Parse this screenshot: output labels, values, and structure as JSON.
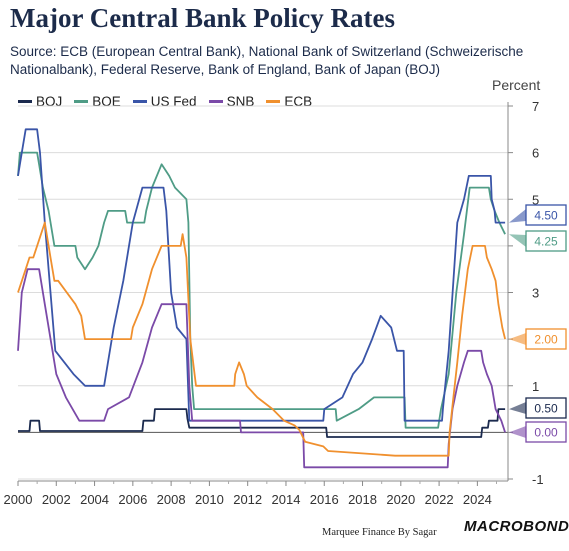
{
  "title": "Major Central Bank Policy Rates",
  "subtitle": "Source: ECB (European Central Bank), National Bank of Switzerland (Schweizerische Nationalbank), Federal Reserve, Bank of England, Bank of Japan (BOJ)",
  "credit": "Marquee Finance By Sagar",
  "brand": "MACROBOND",
  "chart_data": {
    "type": "line",
    "title": "Major Central Bank Policy Rates",
    "ylabel": "Percent",
    "xlabel": "",
    "xlim": [
      2000,
      2025.6
    ],
    "ylim": [
      -1,
      7
    ],
    "x_ticks": [
      2000,
      2002,
      2004,
      2006,
      2008,
      2010,
      2012,
      2014,
      2016,
      2018,
      2020,
      2022,
      2024
    ],
    "y_ticks": [
      -1,
      0,
      1,
      2,
      3,
      4,
      5,
      6,
      7
    ],
    "grid": "horizontal",
    "legend_position": "top-left",
    "series": [
      {
        "name": "BOJ",
        "color": "#1b2a4e",
        "end_label": "0.50",
        "points": [
          [
            2000,
            0.03
          ],
          [
            2000.6,
            0.03
          ],
          [
            2000.65,
            0.25
          ],
          [
            2001.1,
            0.25
          ],
          [
            2001.15,
            0.03
          ],
          [
            2006.5,
            0.03
          ],
          [
            2006.55,
            0.25
          ],
          [
            2007.1,
            0.25
          ],
          [
            2007.15,
            0.5
          ],
          [
            2008.8,
            0.5
          ],
          [
            2008.85,
            0.3
          ],
          [
            2008.95,
            0.1
          ],
          [
            2016.1,
            0.1
          ],
          [
            2016.15,
            -0.1
          ],
          [
            2024.2,
            -0.1
          ],
          [
            2024.25,
            0.1
          ],
          [
            2024.55,
            0.1
          ],
          [
            2024.6,
            0.25
          ],
          [
            2025.05,
            0.25
          ],
          [
            2025.1,
            0.5
          ],
          [
            2025.45,
            0.5
          ]
        ]
      },
      {
        "name": "BOE",
        "color": "#4f9c86",
        "end_label": "4.25",
        "points": [
          [
            2000,
            5.5
          ],
          [
            2000.1,
            6.0
          ],
          [
            2001.0,
            6.0
          ],
          [
            2001.1,
            5.75
          ],
          [
            2001.3,
            5.25
          ],
          [
            2001.6,
            4.75
          ],
          [
            2001.9,
            4.0
          ],
          [
            2003.0,
            4.0
          ],
          [
            2003.1,
            3.75
          ],
          [
            2003.5,
            3.5
          ],
          [
            2003.9,
            3.75
          ],
          [
            2004.2,
            4.0
          ],
          [
            2004.5,
            4.5
          ],
          [
            2004.7,
            4.75
          ],
          [
            2005.6,
            4.75
          ],
          [
            2005.7,
            4.5
          ],
          [
            2006.6,
            4.5
          ],
          [
            2006.7,
            4.75
          ],
          [
            2007.0,
            5.25
          ],
          [
            2007.5,
            5.75
          ],
          [
            2007.9,
            5.5
          ],
          [
            2008.2,
            5.25
          ],
          [
            2008.8,
            5.0
          ],
          [
            2008.9,
            4.5
          ],
          [
            2009.0,
            2.0
          ],
          [
            2009.1,
            1.0
          ],
          [
            2009.2,
            0.5
          ],
          [
            2016.6,
            0.5
          ],
          [
            2016.65,
            0.25
          ],
          [
            2017.8,
            0.5
          ],
          [
            2018.6,
            0.75
          ],
          [
            2020.2,
            0.75
          ],
          [
            2020.25,
            0.1
          ],
          [
            2021.95,
            0.1
          ],
          [
            2022.1,
            0.5
          ],
          [
            2022.5,
            1.25
          ],
          [
            2022.9,
            3.0
          ],
          [
            2023.3,
            4.25
          ],
          [
            2023.6,
            5.25
          ],
          [
            2024.6,
            5.25
          ],
          [
            2024.7,
            5.0
          ],
          [
            2024.9,
            4.75
          ],
          [
            2025.15,
            4.5
          ],
          [
            2025.45,
            4.25
          ]
        ]
      },
      {
        "name": "US Fed",
        "color": "#3a55a8",
        "end_label": "4.50",
        "points": [
          [
            2000,
            5.5
          ],
          [
            2000.2,
            6.0
          ],
          [
            2000.4,
            6.5
          ],
          [
            2001.0,
            6.5
          ],
          [
            2001.15,
            6.0
          ],
          [
            2001.4,
            4.5
          ],
          [
            2001.7,
            3.0
          ],
          [
            2001.95,
            1.75
          ],
          [
            2002.9,
            1.25
          ],
          [
            2003.5,
            1.0
          ],
          [
            2004.5,
            1.0
          ],
          [
            2005.0,
            2.25
          ],
          [
            2005.5,
            3.25
          ],
          [
            2006.0,
            4.5
          ],
          [
            2006.5,
            5.25
          ],
          [
            2007.6,
            5.25
          ],
          [
            2007.75,
            4.75
          ],
          [
            2008.0,
            3.0
          ],
          [
            2008.3,
            2.25
          ],
          [
            2008.8,
            2.0
          ],
          [
            2008.95,
            0.25
          ],
          [
            2015.95,
            0.25
          ],
          [
            2016.0,
            0.5
          ],
          [
            2016.95,
            0.75
          ],
          [
            2017.5,
            1.25
          ],
          [
            2018.0,
            1.5
          ],
          [
            2018.5,
            2.0
          ],
          [
            2018.95,
            2.5
          ],
          [
            2019.5,
            2.25
          ],
          [
            2019.8,
            1.75
          ],
          [
            2020.15,
            1.75
          ],
          [
            2020.2,
            0.25
          ],
          [
            2022.15,
            0.25
          ],
          [
            2022.2,
            0.5
          ],
          [
            2022.5,
            1.75
          ],
          [
            2022.75,
            3.25
          ],
          [
            2022.95,
            4.5
          ],
          [
            2023.3,
            5.0
          ],
          [
            2023.55,
            5.5
          ],
          [
            2024.7,
            5.5
          ],
          [
            2024.75,
            5.0
          ],
          [
            2024.9,
            4.75
          ],
          [
            2024.95,
            4.5
          ],
          [
            2025.45,
            4.5
          ]
        ]
      },
      {
        "name": "SNB",
        "color": "#7b4aa8",
        "end_label": "0.00",
        "points": [
          [
            2000,
            1.75
          ],
          [
            2000.2,
            3.0
          ],
          [
            2000.5,
            3.5
          ],
          [
            2001.1,
            3.5
          ],
          [
            2001.4,
            2.75
          ],
          [
            2001.8,
            1.75
          ],
          [
            2002.0,
            1.25
          ],
          [
            2002.5,
            0.75
          ],
          [
            2003.2,
            0.25
          ],
          [
            2004.5,
            0.25
          ],
          [
            2004.7,
            0.5
          ],
          [
            2005.8,
            0.75
          ],
          [
            2006.5,
            1.5
          ],
          [
            2007.0,
            2.25
          ],
          [
            2007.5,
            2.75
          ],
          [
            2008.8,
            2.75
          ],
          [
            2008.95,
            1.0
          ],
          [
            2009.1,
            0.25
          ],
          [
            2011.6,
            0.25
          ],
          [
            2011.65,
            0.0
          ],
          [
            2014.9,
            0.0
          ],
          [
            2014.95,
            -0.75
          ],
          [
            2022.45,
            -0.75
          ],
          [
            2022.5,
            -0.25
          ],
          [
            2022.7,
            0.5
          ],
          [
            2022.95,
            1.0
          ],
          [
            2023.3,
            1.5
          ],
          [
            2023.5,
            1.75
          ],
          [
            2024.2,
            1.75
          ],
          [
            2024.3,
            1.5
          ],
          [
            2024.5,
            1.25
          ],
          [
            2024.75,
            1.0
          ],
          [
            2024.95,
            0.5
          ],
          [
            2025.25,
            0.25
          ],
          [
            2025.45,
            0.0
          ]
        ]
      },
      {
        "name": "ECB",
        "color": "#f0902e",
        "end_label": "2.00",
        "points": [
          [
            2000,
            3.0
          ],
          [
            2000.4,
            3.5
          ],
          [
            2000.6,
            3.75
          ],
          [
            2000.8,
            3.75
          ],
          [
            2001.4,
            4.5
          ],
          [
            2001.7,
            3.75
          ],
          [
            2001.9,
            3.25
          ],
          [
            2002.1,
            3.25
          ],
          [
            2003.0,
            2.75
          ],
          [
            2003.3,
            2.5
          ],
          [
            2003.5,
            2.0
          ],
          [
            2005.9,
            2.0
          ],
          [
            2006.0,
            2.25
          ],
          [
            2006.5,
            2.75
          ],
          [
            2007.0,
            3.5
          ],
          [
            2007.5,
            4.0
          ],
          [
            2008.5,
            4.0
          ],
          [
            2008.6,
            4.25
          ],
          [
            2008.8,
            3.75
          ],
          [
            2009.0,
            2.0
          ],
          [
            2009.3,
            1.0
          ],
          [
            2011.3,
            1.0
          ],
          [
            2011.35,
            1.25
          ],
          [
            2011.55,
            1.5
          ],
          [
            2011.8,
            1.25
          ],
          [
            2011.95,
            1.0
          ],
          [
            2012.5,
            0.75
          ],
          [
            2013.3,
            0.5
          ],
          [
            2013.9,
            0.25
          ],
          [
            2014.45,
            0.15
          ],
          [
            2014.7,
            0.05
          ],
          [
            2015.0,
            -0.2
          ],
          [
            2015.95,
            -0.3
          ],
          [
            2016.2,
            -0.4
          ],
          [
            2019.7,
            -0.5
          ],
          [
            2022.5,
            -0.5
          ],
          [
            2022.55,
            0.0
          ],
          [
            2022.75,
            0.75
          ],
          [
            2022.95,
            1.5
          ],
          [
            2023.2,
            2.5
          ],
          [
            2023.5,
            3.5
          ],
          [
            2023.75,
            4.0
          ],
          [
            2024.4,
            4.0
          ],
          [
            2024.5,
            3.75
          ],
          [
            2024.75,
            3.5
          ],
          [
            2024.95,
            3.25
          ],
          [
            2025.1,
            2.75
          ],
          [
            2025.3,
            2.25
          ],
          [
            2025.45,
            2.0
          ]
        ]
      }
    ]
  }
}
